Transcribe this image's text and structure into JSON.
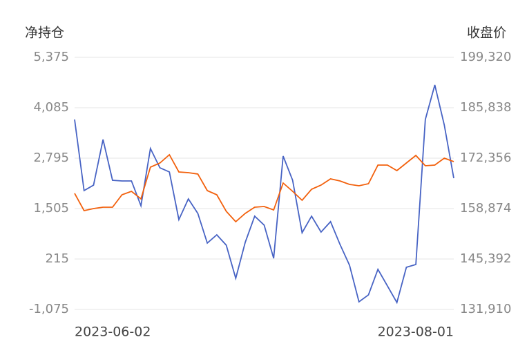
{
  "chart_data": {
    "type": "line",
    "y_title": "净持仓",
    "y2_title": "收盘价",
    "categories": [
      "2023-06-02",
      null,
      null,
      null,
      null,
      null,
      null,
      null,
      null,
      null,
      null,
      null,
      null,
      null,
      null,
      null,
      null,
      null,
      null,
      null,
      null,
      null,
      null,
      null,
      null,
      null,
      null,
      null,
      null,
      null,
      null,
      null,
      null,
      null,
      null,
      null,
      null,
      null,
      null,
      null,
      "2023-08-01"
    ],
    "ylim": [
      -1075,
      5375
    ],
    "yticks": [
      {
        "value": -1075,
        "label": "-1,075"
      },
      215,
      {
        "value": 1505,
        "label": "1,505"
      },
      {
        "value": 2795,
        "label": "2,795"
      },
      {
        "value": 4085,
        "label": "4,085"
      },
      {
        "value": 5375,
        "label": "5,375"
      }
    ],
    "y2lim": [
      131910,
      199320
    ],
    "y2ticks": [
      {
        "value": 131910,
        "label": "131,910"
      },
      {
        "value": 145392,
        "label": "145,392"
      },
      {
        "value": 158874,
        "label": "158,874"
      },
      {
        "value": 172356,
        "label": "172,356"
      },
      {
        "value": 185838,
        "label": "185,838"
      },
      {
        "value": 199320,
        "label": "199,320"
      }
    ],
    "grid": true,
    "series": [
      {
        "color": "#4763c4",
        "values": [
          3785,
          1965,
          2106,
          3272,
          2230,
          2212,
          2212,
          1576,
          3042,
          2548,
          2442,
          1223,
          1753,
          1382,
          622,
          834,
          569,
          -279,
          640,
          1311,
          1081,
          233,
          2848,
          2230,
          887,
          1311,
          905,
          1170,
          587,
          57,
          -880,
          -703,
          -50,
          -474,
          -898,
          3,
          74,
          3785,
          4668,
          3643,
          2283
        ]
      },
      {
        "color": "#f2600c",
        "axis": "y2",
        "values": [
          162938,
          158321,
          158875,
          159244,
          159244,
          162569,
          163492,
          161461,
          169957,
          171064,
          173281,
          168664,
          168479,
          168110,
          163677,
          162569,
          158137,
          155366,
          157583,
          159244,
          159429,
          158506,
          165708,
          163492,
          161092,
          164047,
          165155,
          166818,
          166264,
          165341,
          164972,
          165526,
          170510,
          170510,
          169033,
          171064,
          173096,
          170326,
          170510,
          172357,
          171434
        ]
      }
    ]
  }
}
